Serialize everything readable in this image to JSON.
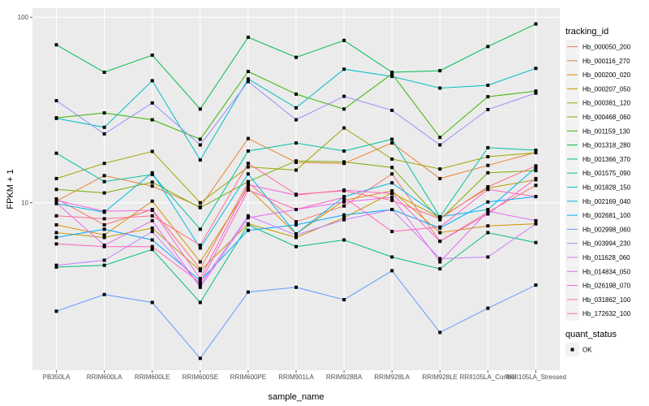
{
  "chart_data": {
    "type": "line",
    "title": "",
    "xlabel": "sample_name",
    "ylabel": "FPKM + 1",
    "yscale": "log10",
    "ylim": [
      1.25,
      112
    ],
    "yticks": [
      {
        "value": 10,
        "label": "10"
      },
      {
        "value": 100,
        "label": "100"
      }
    ],
    "grid": true,
    "categories": [
      "PB350LA",
      "RRIM600LA",
      "RRIM600LE",
      "RRIM600SE",
      "RRIM600PE",
      "RRIM901LA",
      "RRIM928BA",
      "RRIM928LA",
      "RRIM928LE",
      "RRII105LA_Control",
      "RRII105LA_Stressed"
    ],
    "legend": {
      "title": "tracking_id",
      "placement": "right",
      "shape_title": "quant_status",
      "shape_entries": [
        "OK"
      ]
    },
    "series": [
      {
        "name": "Hb_000050_200",
        "color": "#F8766D",
        "values": [
          10.5,
          7.6,
          9.2,
          4.4,
          12.8,
          7.9,
          9.6,
          14.3,
          6.2,
          8.9,
          12.4
        ]
      },
      {
        "name": "Hb_000116_270",
        "color": "#EA8331",
        "values": [
          10.2,
          14.0,
          12.3,
          9.5,
          22.2,
          16.5,
          16.3,
          21.0,
          13.5,
          15.9,
          18.7
        ]
      },
      {
        "name": "Hb_000200_020",
        "color": "#D89000",
        "values": [
          7.6,
          6.7,
          10.2,
          4.8,
          12.0,
          6.8,
          10.3,
          11.6,
          6.9,
          7.5,
          7.7
        ]
      },
      {
        "name": "Hb_000207_050",
        "color": "#C09B00",
        "values": [
          6.9,
          6.5,
          7.3,
          4.3,
          7.7,
          6.5,
          8.3,
          11.3,
          8.3,
          12.0,
          13.3
        ]
      },
      {
        "name": "Hb_000381_120",
        "color": "#A3A500",
        "values": [
          13.5,
          16.3,
          18.9,
          10.0,
          15.6,
          15.0,
          25.3,
          17.2,
          15.2,
          17.7,
          18.6
        ]
      },
      {
        "name": "Hb_000468_060",
        "color": "#7CAE00",
        "values": [
          11.8,
          11.3,
          12.9,
          9.4,
          13.0,
          16.8,
          16.6,
          15.5,
          8.1,
          14.5,
          14.9
        ]
      },
      {
        "name": "Hb_001159_130",
        "color": "#39B600",
        "values": [
          28.7,
          30.5,
          28.0,
          22.0,
          51.0,
          38.5,
          32.0,
          49.5,
          22.5,
          37.3,
          40.0
        ]
      },
      {
        "name": "Hb_001318_280",
        "color": "#00BB4E",
        "values": [
          71.0,
          50.5,
          62.5,
          32.0,
          78.0,
          60.8,
          75.0,
          50.5,
          51.5,
          69.5,
          92.0
        ]
      },
      {
        "name": "Hb_001366_370",
        "color": "#00BF7D",
        "values": [
          4.5,
          4.6,
          5.6,
          2.9,
          7.6,
          5.8,
          6.3,
          5.1,
          4.4,
          6.9,
          6.1
        ]
      },
      {
        "name": "Hb_001575_090",
        "color": "#00C1A3",
        "values": [
          18.5,
          13.0,
          14.2,
          7.2,
          19.0,
          21.0,
          19.0,
          22.0,
          8.4,
          19.8,
          19.2
        ]
      },
      {
        "name": "Hb_001828_150",
        "color": "#00BFC4",
        "values": [
          28.5,
          25.5,
          45.5,
          17.0,
          46.5,
          32.5,
          52.5,
          48.0,
          41.5,
          43.0,
          53.0
        ]
      },
      {
        "name": "Hb_002169_040",
        "color": "#00B8E7",
        "values": [
          9.9,
          8.9,
          14.5,
          5.7,
          14.3,
          6.8,
          10.8,
          12.8,
          8.4,
          9.2,
          15.5
        ]
      },
      {
        "name": "Hb_002681_100",
        "color": "#00A9FF",
        "values": [
          6.5,
          7.2,
          6.3,
          3.8,
          7.1,
          7.6,
          8.6,
          9.2,
          7.3,
          10.1,
          10.8
        ]
      },
      {
        "name": "Hb_002998_060",
        "color": "#619CFF",
        "values": [
          2.6,
          3.2,
          2.9,
          1.45,
          3.3,
          3.5,
          3.0,
          4.3,
          2.0,
          2.7,
          3.6
        ]
      },
      {
        "name": "Hb_003994_230",
        "color": "#9590FF",
        "values": [
          35.5,
          23.5,
          34.5,
          20.5,
          45.0,
          28.0,
          37.5,
          31.5,
          20.5,
          31.8,
          39.0
        ]
      },
      {
        "name": "Hb_011628_060",
        "color": "#C77CFF",
        "values": [
          4.6,
          4.9,
          7.0,
          3.6,
          8.5,
          6.7,
          8.1,
          9.2,
          5.0,
          5.1,
          7.7
        ]
      },
      {
        "name": "Hb_014834_050",
        "color": "#E76BF3",
        "values": [
          10.0,
          5.9,
          8.0,
          3.5,
          8.3,
          9.2,
          10.1,
          10.7,
          4.8,
          9.0,
          8.0
        ]
      },
      {
        "name": "Hb_026198_070",
        "color": "#FA62DB",
        "values": [
          10.3,
          9.0,
          9.1,
          3.9,
          12.5,
          11.0,
          11.7,
          11.2,
          6.2,
          8.7,
          13.5
        ]
      },
      {
        "name": "Hb_031862_100",
        "color": "#FF62BC",
        "values": [
          6.0,
          5.8,
          5.8,
          3.7,
          11.7,
          9.2,
          10.7,
          7.0,
          7.4,
          11.8,
          10.8
        ]
      },
      {
        "name": "Hb_172632_100",
        "color": "#FF6C91",
        "values": [
          8.5,
          8.2,
          8.5,
          5.9,
          16.3,
          11.1,
          11.6,
          10.3,
          8.2,
          12.2,
          15.8
        ]
      }
    ]
  }
}
